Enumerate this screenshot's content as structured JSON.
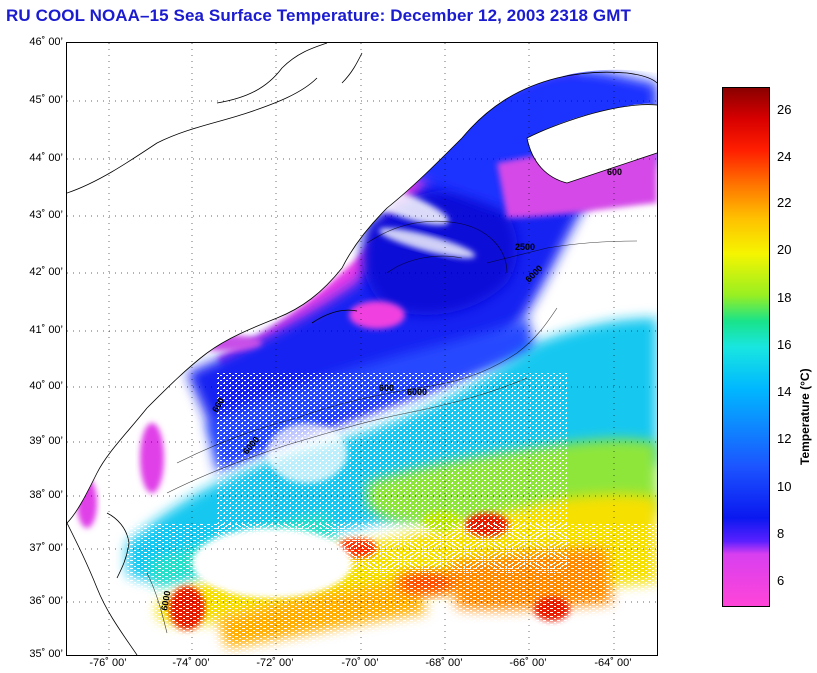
{
  "title": "RU COOL  NOAA–15  Sea Surface Temperature:  December 12, 2003 2318 GMT",
  "lat_labels": [
    "46˚ 00’",
    "45˚ 00’",
    "44˚ 00’",
    "43˚ 00’",
    "42˚ 00’",
    "41˚ 00’",
    "40˚ 00’",
    "39˚ 00’",
    "38˚ 00’",
    "37˚ 00’",
    "36˚ 00’",
    "35˚ 00’"
  ],
  "lon_labels": [
    "-76˚ 00’",
    "-74˚ 00’",
    "-72˚ 00’",
    "-70˚ 00’",
    "-68˚ 00’",
    "-66˚ 00’",
    "-64˚ 00’"
  ],
  "colorbar": {
    "title": "Temperature (°C)",
    "ticks": [
      "26",
      "24",
      "22",
      "20",
      "18",
      "16",
      "14",
      "12",
      "10",
      "8",
      "6"
    ]
  },
  "contour_labels": [
    "600",
    "6000",
    "600",
    "6000",
    "600",
    "6000",
    "6000",
    "2500"
  ],
  "colors": {
    "title": "#1b1bd0",
    "cold_magenta": "#e040e8",
    "cold_blue": "#1020f0",
    "mid_cyan": "#19d0e8",
    "warm_yellow": "#f5e800",
    "hot_red": "#e81c00"
  }
}
